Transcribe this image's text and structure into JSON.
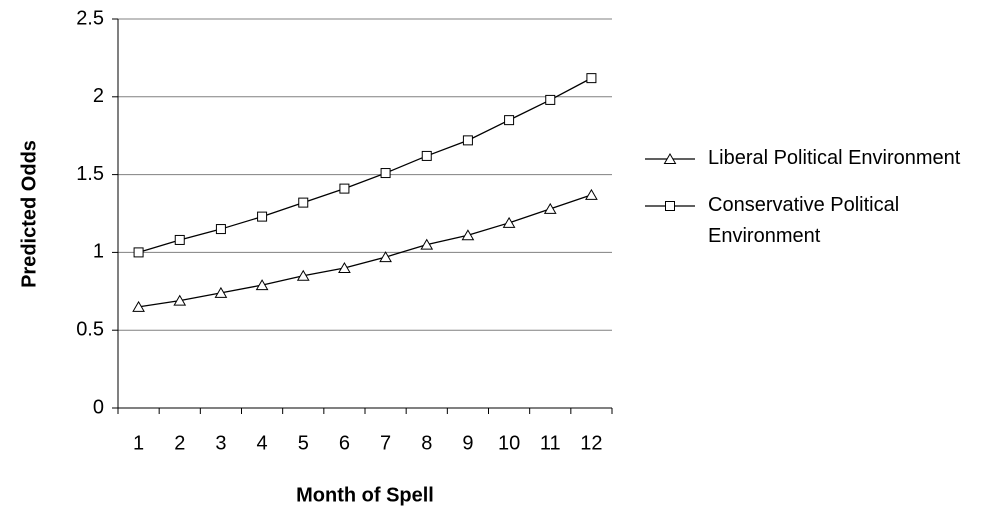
{
  "chart_data": {
    "type": "line",
    "y_label": "Predicted Odds",
    "x_label": "Month of Spell",
    "categories": [
      "1",
      "2",
      "3",
      "4",
      "5",
      "6",
      "7",
      "8",
      "9",
      "10",
      "11",
      "12"
    ],
    "series": [
      {
        "name": "Liberal Political Environment",
        "color": "#000000",
        "marker": "triangle",
        "values": [
          0.65,
          0.69,
          0.74,
          0.79,
          0.85,
          0.9,
          0.97,
          1.05,
          1.11,
          1.19,
          1.28,
          1.37
        ]
      },
      {
        "name": "Conservative Political Environment",
        "color": "#000000",
        "marker": "square",
        "values": [
          1.0,
          1.08,
          1.15,
          1.23,
          1.32,
          1.41,
          1.51,
          1.62,
          1.72,
          1.85,
          1.98,
          2.12
        ]
      }
    ],
    "ylim": [
      0,
      2.5
    ],
    "yticks": [
      0,
      0.5,
      1,
      1.5,
      2,
      2.5
    ],
    "grid": true,
    "legend": "right"
  }
}
